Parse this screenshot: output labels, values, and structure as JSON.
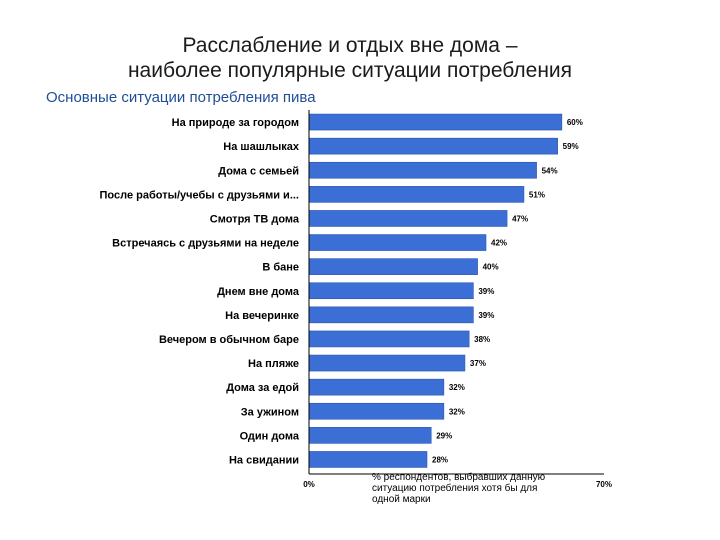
{
  "title_line1": "Расслабление и отдых вне дома –",
  "title_line2": "наиболее популярные ситуации потребления",
  "subtitle": "Основные ситуации потребления пива",
  "note": "% респондентов, выбравших данную ситуацию потребления хотя бы для одной марки",
  "colors": {
    "bar": "#3b6fd6",
    "bar_edge": "#2b55b0",
    "axis": "#000000",
    "subtitle": "#1f4e99"
  },
  "chart_data": {
    "type": "bar",
    "orientation": "horizontal",
    "title": "",
    "xlabel": "% респондентов, выбравших данную ситуацию потребления хотя бы для одной марки",
    "ylabel": "",
    "xlim": [
      0,
      70
    ],
    "x_ticks": [
      "0%",
      "70%"
    ],
    "grid": false,
    "categories": [
      "На природе за городом",
      "На шашлыках",
      "Дома с семьей",
      "После работы/учебы с друзьями и...",
      "Смотря ТВ дома",
      "Встречаясь с друзьями на неделе",
      "В бане",
      "Днем вне дома",
      "На вечеринке",
      "Вечером в обычном баре",
      "На пляже",
      "Дома за едой",
      "За ужином",
      "Один дома",
      "На свидании"
    ],
    "values": [
      60,
      59,
      54,
      51,
      47,
      42,
      40,
      39,
      39,
      38,
      37,
      32,
      32,
      29,
      28
    ],
    "value_labels": [
      "60%",
      "59%",
      "54%",
      "51%",
      "47%",
      "42%",
      "40%",
      "39%",
      "39%",
      "38%",
      "37%",
      "32%",
      "32%",
      "29%",
      "28%"
    ]
  }
}
